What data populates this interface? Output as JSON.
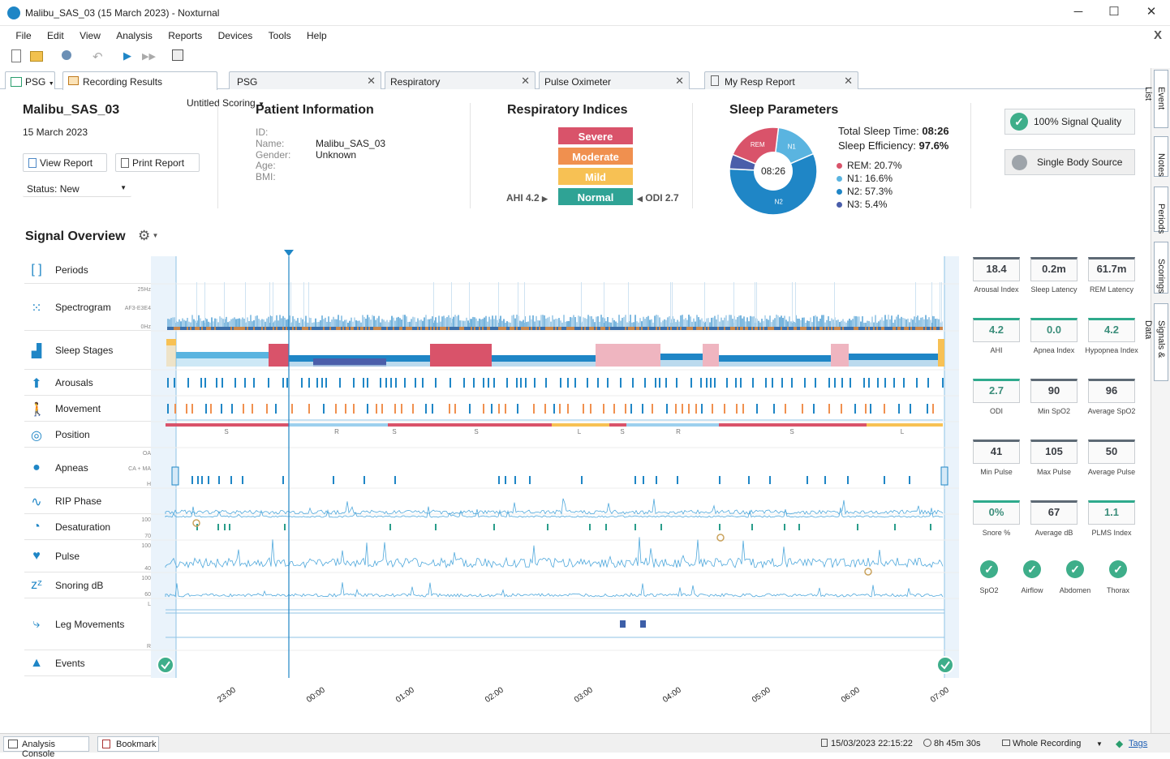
{
  "window": {
    "title": "Malibu_SAS_03 (15 March 2023)  - Noxturnal",
    "minimize": "─",
    "maximize": "☐",
    "close": "✕"
  },
  "menu": {
    "items": [
      "File",
      "Edit",
      "View",
      "Analysis",
      "Reports",
      "Devices",
      "Tools",
      "Help"
    ],
    "close_doc": "X"
  },
  "toolbar": {
    "scoring_label": "Untitled Scoring"
  },
  "tabs": {
    "psg_dropdown": "PSG",
    "items": [
      {
        "label": "Recording Results",
        "active": true
      },
      {
        "label": "PSG"
      },
      {
        "label": "Respiratory"
      },
      {
        "label": "Pulse Oximeter"
      },
      {
        "label": "My Resp Report"
      }
    ]
  },
  "right_dock": [
    "Event List",
    "Notes",
    "Periods",
    "Scorings",
    "Signals & Data"
  ],
  "recording": {
    "name": "Malibu_SAS_03",
    "date": "15 March 2023",
    "view_report": "View Report",
    "print_report": "Print Report",
    "status": "Status: New"
  },
  "patient": {
    "heading": "Patient Information",
    "fields": [
      {
        "label": "ID:",
        "value": ""
      },
      {
        "label": "Name:",
        "value": "Malibu_SAS_03"
      },
      {
        "label": "Gender:",
        "value": "Unknown"
      },
      {
        "label": "Age:",
        "value": ""
      },
      {
        "label": "BMI:",
        "value": ""
      }
    ]
  },
  "respiratory": {
    "heading": "Respiratory Indices",
    "levels": [
      "Severe",
      "Moderate",
      "Mild",
      "Normal"
    ],
    "level_colors": [
      "#d9536a",
      "#f0904f",
      "#f7c154",
      "#2fa395"
    ],
    "ahi": "AHI 4.2",
    "odi": "ODI 2.7"
  },
  "sleep": {
    "heading": "Sleep Parameters",
    "center": "08:26",
    "tst_label": "Total Sleep Time:",
    "tst_value": "08:26",
    "eff_label": "Sleep Efficiency:",
    "eff_value": "97.6%",
    "stages": [
      {
        "label": "REM: 20.7%",
        "pct": 20.7,
        "color": "#d9536a",
        "name": "REM"
      },
      {
        "label": "N1: 16.6%",
        "pct": 16.6,
        "color": "#5ab4e0",
        "name": "N1"
      },
      {
        "label": "N2: 57.3%",
        "pct": 57.3,
        "color": "#1f86c6",
        "name": "N2"
      },
      {
        "label": "N3: 5.4%",
        "pct": 5.4,
        "color": "#4a5eaa",
        "name": ""
      }
    ]
  },
  "quality": {
    "signal": "100% Signal Quality",
    "body": "Single Body Source"
  },
  "overview": {
    "title": "Signal Overview",
    "rows": [
      {
        "label": "Periods",
        "icon": "periods-icon"
      },
      {
        "label": "Spectrogram",
        "icon": "spectrogram-icon",
        "scales": [
          "25Hz",
          "AF3-E3E4",
          "0Hz"
        ]
      },
      {
        "label": "Sleep Stages",
        "icon": "sleep-stages-icon"
      },
      {
        "label": "Arousals",
        "icon": "arousals-icon"
      },
      {
        "label": "Movement",
        "icon": "movement-icon"
      },
      {
        "label": "Position",
        "icon": "position-icon"
      },
      {
        "label": "Apneas",
        "icon": "apneas-icon",
        "scales": [
          "OA",
          "CA + MA",
          "H"
        ]
      },
      {
        "label": "RIP Phase",
        "icon": "rip-phase-icon"
      },
      {
        "label": "Desaturation",
        "icon": "desaturation-icon",
        "scales": [
          "100",
          "70"
        ]
      },
      {
        "label": "Pulse",
        "icon": "pulse-icon",
        "scales": [
          "100",
          "40"
        ]
      },
      {
        "label": "Snoring dB",
        "icon": "snoring-icon",
        "scales": [
          "100",
          "60"
        ]
      },
      {
        "label": "Leg Movements",
        "icon": "leg-movements-icon",
        "scales": [
          "L",
          "R"
        ]
      },
      {
        "label": "Events",
        "icon": "events-icon"
      }
    ],
    "position_letters": [
      "S",
      "R",
      "S",
      "S",
      "L",
      "S",
      "R",
      "S",
      "L"
    ],
    "times": [
      "23:00",
      "00:00",
      "01:00",
      "02:00",
      "03:00",
      "04:00",
      "05:00",
      "06:00",
      "07:00"
    ]
  },
  "parameters": [
    {
      "value": "18.4",
      "label": "Arousal Index",
      "ok": false
    },
    {
      "value": "0.2m",
      "label": "Sleep Latency",
      "ok": false
    },
    {
      "value": "61.7m",
      "label": "REM Latency",
      "ok": false
    },
    {
      "value": "4.2",
      "label": "AHI",
      "ok": true
    },
    {
      "value": "0.0",
      "label": "Apnea Index",
      "ok": true
    },
    {
      "value": "4.2",
      "label": "Hypopnea Index",
      "ok": true
    },
    {
      "value": "2.7",
      "label": "ODI",
      "ok": true
    },
    {
      "value": "90",
      "label": "Min SpO2",
      "ok": false
    },
    {
      "value": "96",
      "label": "Average SpO2",
      "ok": false
    },
    {
      "value": "41",
      "label": "Min Pulse",
      "ok": false
    },
    {
      "value": "105",
      "label": "Max Pulse",
      "ok": false
    },
    {
      "value": "50",
      "label": "Average Pulse",
      "ok": false
    },
    {
      "value": "0%",
      "label": "Snore %",
      "ok": true
    },
    {
      "value": "67",
      "label": "Average dB",
      "ok": false
    },
    {
      "value": "1.1",
      "label": "PLMS Index",
      "ok": true
    }
  ],
  "channels": [
    "SpO2",
    "Airflow",
    "Abdomen",
    "Thorax"
  ],
  "statusbar": {
    "analysis_console": "Analysis Console",
    "bookmark": "Bookmark",
    "start": "15/03/2023 22:15:22",
    "duration": "8h 45m 30s",
    "range": "Whole Recording",
    "tags": "Tags"
  }
}
